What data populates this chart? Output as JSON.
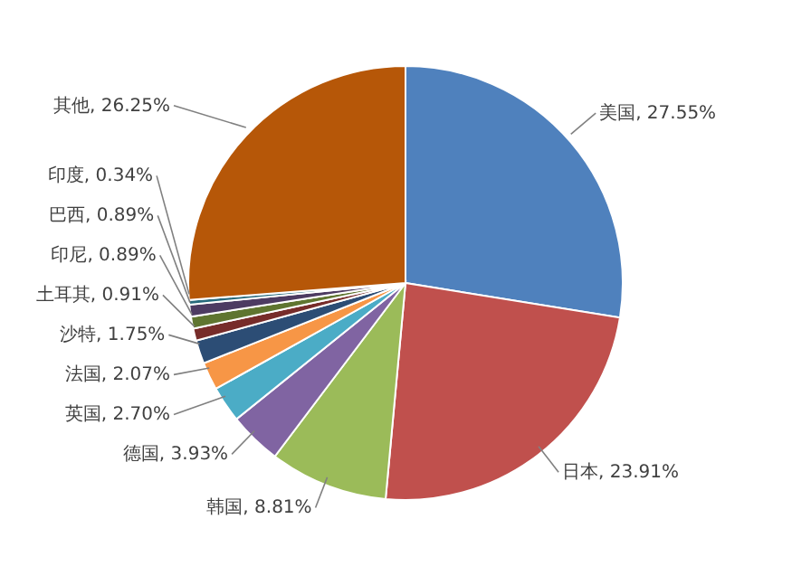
{
  "chart_data": {
    "type": "pie",
    "categories": [
      "美国",
      "日本",
      "韩国",
      "德国",
      "英国",
      "法国",
      "沙特",
      "土耳其",
      "印尼",
      "巴西",
      "印度",
      "其他"
    ],
    "values": [
      27.55,
      23.91,
      8.81,
      3.93,
      2.7,
      2.07,
      1.75,
      0.91,
      0.89,
      0.89,
      0.34,
      26.25
    ],
    "value_labels": [
      ", 27.55%",
      ", 23.91%",
      ", 8.81%",
      ", 3.93%",
      ", 2.70%",
      ", 2.07%",
      ", 1.75%",
      ", 0.91%",
      ", 0.89%",
      ", 0.89%",
      ", 0.34%",
      ", 26.25%"
    ],
    "colors": [
      "#4f81bd",
      "#c0504d",
      "#9bbb59",
      "#8064a2",
      "#4bacc6",
      "#f79646",
      "#2c4d75",
      "#772c2a",
      "#5f7530",
      "#4d3b62",
      "#276a7c",
      "#b65708"
    ]
  }
}
